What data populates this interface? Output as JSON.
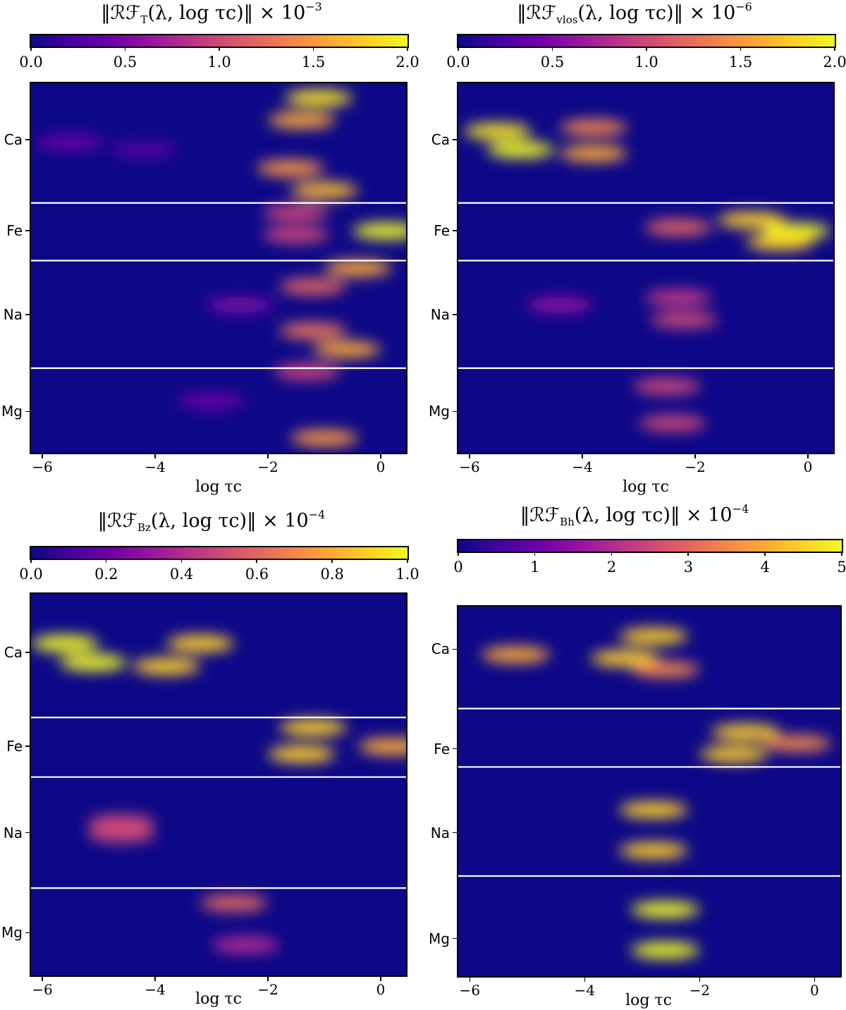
{
  "chart_data": [
    {
      "type": "heatmap",
      "title": "‖ℛℱT(λ, log τc)‖ × 10−3",
      "title_parts": {
        "symbol": "ℛℱ",
        "subscript": "T",
        "args": "(λ, log τc)",
        "scale": "× 10",
        "exponent": "−3"
      },
      "xlabel": "log τc",
      "xlim": [
        -6.2,
        0.45
      ],
      "x_ticks": [
        "−6",
        "−4",
        "−2",
        "0"
      ],
      "x_tick_values": [
        -6,
        -4,
        -2,
        0
      ],
      "y_ticks": [
        "Ca",
        "Fe",
        "Na",
        "Mg"
      ],
      "y_tick_rows": [
        0.153,
        0.399,
        0.626,
        0.888
      ],
      "separators": [
        0.324,
        0.48,
        0.771
      ],
      "colormap": "plasma",
      "colorbar": {
        "min": 0.0,
        "max": 2.0,
        "ticks": [
          "0.0",
          "0.5",
          "1.0",
          "1.5",
          "2.0"
        ],
        "tick_values": [
          0,
          0.5,
          1.0,
          1.5,
          2.0
        ]
      },
      "hotspots": [
        {
          "x": -1.1,
          "row": 0.04,
          "value": 1.9
        },
        {
          "x": -1.4,
          "row": 0.1,
          "value": 1.6
        },
        {
          "x": -5.5,
          "row": 0.16,
          "value": 0.4
        },
        {
          "x": -4.2,
          "row": 0.18,
          "value": 0.3
        },
        {
          "x": -1.6,
          "row": 0.23,
          "value": 1.5
        },
        {
          "x": -1.0,
          "row": 0.29,
          "value": 1.7
        },
        {
          "x": -1.5,
          "row": 0.35,
          "value": 1.0
        },
        {
          "x": -1.5,
          "row": 0.41,
          "value": 1.0
        },
        {
          "x": 0.1,
          "row": 0.4,
          "value": 2.0
        },
        {
          "x": -0.4,
          "row": 0.5,
          "value": 1.6
        },
        {
          "x": -1.2,
          "row": 0.55,
          "value": 1.2
        },
        {
          "x": -2.5,
          "row": 0.6,
          "value": 0.5
        },
        {
          "x": -1.2,
          "row": 0.67,
          "value": 1.3
        },
        {
          "x": -0.6,
          "row": 0.72,
          "value": 1.6
        },
        {
          "x": -1.3,
          "row": 0.78,
          "value": 1.0
        },
        {
          "x": -3.0,
          "row": 0.86,
          "value": 0.4
        },
        {
          "x": -1.0,
          "row": 0.96,
          "value": 1.5
        }
      ]
    },
    {
      "type": "heatmap",
      "title": "‖ℛℱvlos(λ, log τc)‖ × 10−6",
      "title_parts": {
        "symbol": "ℛℱ",
        "subscript": "vlos",
        "args": "(λ, log τc)",
        "scale": "× 10",
        "exponent": "−6"
      },
      "xlabel": "log τc",
      "xlim": [
        -6.2,
        0.45
      ],
      "x_ticks": [
        "−6",
        "−4",
        "−2",
        "0"
      ],
      "x_tick_values": [
        -6,
        -4,
        -2,
        0
      ],
      "y_ticks": [
        "Ca",
        "Fe",
        "Na",
        "Mg"
      ],
      "y_tick_rows": [
        0.153,
        0.399,
        0.626,
        0.888
      ],
      "separators": [
        0.324,
        0.48,
        0.771
      ],
      "colormap": "plasma",
      "colorbar": {
        "min": 0.0,
        "max": 2.0,
        "ticks": [
          "0.0",
          "0.5",
          "1.0",
          "1.5",
          "2.0"
        ],
        "tick_values": [
          0,
          0.5,
          1.0,
          1.5,
          2.0
        ]
      },
      "hotspots": [
        {
          "x": -5.5,
          "row": 0.13,
          "value": 1.9
        },
        {
          "x": -3.8,
          "row": 0.12,
          "value": 1.4
        },
        {
          "x": -5.1,
          "row": 0.18,
          "value": 2.0
        },
        {
          "x": -3.8,
          "row": 0.19,
          "value": 1.6
        },
        {
          "x": -1.0,
          "row": 0.37,
          "value": 1.8
        },
        {
          "x": -2.3,
          "row": 0.39,
          "value": 1.2
        },
        {
          "x": -0.2,
          "row": 0.4,
          "value": 2.0
        },
        {
          "x": -0.5,
          "row": 0.43,
          "value": 1.8
        },
        {
          "x": -4.4,
          "row": 0.6,
          "value": 0.6
        },
        {
          "x": -2.3,
          "row": 0.58,
          "value": 0.9
        },
        {
          "x": -2.2,
          "row": 0.64,
          "value": 1.0
        },
        {
          "x": -2.5,
          "row": 0.82,
          "value": 1.0
        },
        {
          "x": -2.4,
          "row": 0.92,
          "value": 1.0
        }
      ]
    },
    {
      "type": "heatmap",
      "title": "‖ℛℱBz(λ, log τc)‖ × 10−4",
      "title_parts": {
        "symbol": "ℛℱ",
        "subscript": "Bz",
        "args": "(λ, log τc)",
        "scale": "× 10",
        "exponent": "−4"
      },
      "xlabel": "log τc",
      "xlim": [
        -6.2,
        0.45
      ],
      "x_ticks": [
        "−6",
        "−4",
        "−2",
        "0"
      ],
      "x_tick_values": [
        -6,
        -4,
        -2,
        0
      ],
      "y_ticks": [
        "Ca",
        "Fe",
        "Na",
        "Mg"
      ],
      "y_tick_rows": [
        0.153,
        0.399,
        0.626,
        0.888
      ],
      "separators": [
        0.324,
        0.48,
        0.771
      ],
      "colormap": "plasma",
      "colorbar": {
        "min": 0.0,
        "max": 1.0,
        "ticks": [
          "0.0",
          "0.2",
          "0.4",
          "0.6",
          "0.8",
          "1.0"
        ],
        "tick_values": [
          0,
          0.2,
          0.4,
          0.6,
          0.8,
          1.0
        ]
      },
      "hotspots": [
        {
          "x": -5.6,
          "row": 0.13,
          "value": 1.0
        },
        {
          "x": -3.2,
          "row": 0.13,
          "value": 0.9
        },
        {
          "x": -5.1,
          "row": 0.18,
          "value": 1.0
        },
        {
          "x": -3.8,
          "row": 0.19,
          "value": 0.9
        },
        {
          "x": -1.2,
          "row": 0.35,
          "value": 0.9
        },
        {
          "x": -1.4,
          "row": 0.42,
          "value": 0.9
        },
        {
          "x": 0.2,
          "row": 0.4,
          "value": 0.8
        },
        {
          "x": -4.6,
          "row": 0.6,
          "value": 0.5
        },
        {
          "x": -4.6,
          "row": 0.63,
          "value": 0.5
        },
        {
          "x": -2.6,
          "row": 0.81,
          "value": 0.6
        },
        {
          "x": -2.4,
          "row": 0.92,
          "value": 0.4
        }
      ]
    },
    {
      "type": "heatmap",
      "title": "‖ℛℱBh(λ, log τc)‖ × 10−4",
      "title_parts": {
        "symbol": "ℛℱ",
        "subscript": "Bh",
        "args": "(λ, log τc)",
        "scale": "× 10",
        "exponent": "−4"
      },
      "xlabel": "log τc",
      "xlim": [
        -6.2,
        0.45
      ],
      "x_ticks": [
        "−6",
        "−4",
        "−2",
        "0"
      ],
      "x_tick_values": [
        -6,
        -4,
        -2,
        0
      ],
      "y_ticks": [
        "Ca",
        "Fe",
        "Na",
        "Mg"
      ],
      "y_tick_rows": [
        0.115,
        0.385,
        0.612,
        0.898
      ],
      "separators": [
        0.276,
        0.434,
        0.729
      ],
      "colormap": "plasma",
      "colorbar": {
        "min": 0,
        "max": 5,
        "ticks": [
          "0",
          "1",
          "2",
          "3",
          "4",
          "5"
        ],
        "tick_values": [
          0,
          1,
          2,
          3,
          4,
          5
        ]
      },
      "hotspots": [
        {
          "x": -2.8,
          "row": 0.08,
          "value": 4.5
        },
        {
          "x": -5.2,
          "row": 0.13,
          "value": 4.0
        },
        {
          "x": -3.3,
          "row": 0.14,
          "value": 4.5
        },
        {
          "x": -2.6,
          "row": 0.17,
          "value": 3.5
        },
        {
          "x": -1.2,
          "row": 0.34,
          "value": 4.5
        },
        {
          "x": -1.4,
          "row": 0.4,
          "value": 4.5
        },
        {
          "x": -0.3,
          "row": 0.37,
          "value": 3.5
        },
        {
          "x": -2.8,
          "row": 0.55,
          "value": 4.5
        },
        {
          "x": -2.8,
          "row": 0.66,
          "value": 4.5
        },
        {
          "x": -2.6,
          "row": 0.82,
          "value": 5.0
        },
        {
          "x": -2.6,
          "row": 0.93,
          "value": 5.0
        }
      ]
    }
  ]
}
